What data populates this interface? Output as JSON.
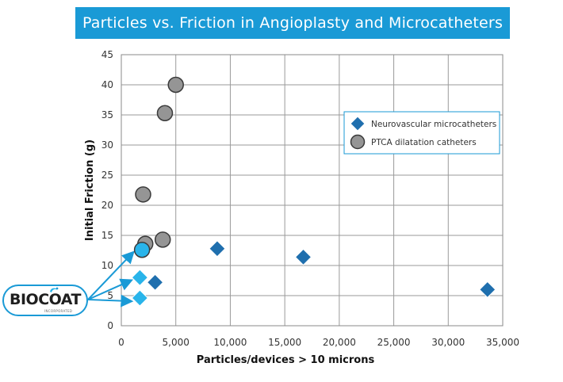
{
  "title": "Particles vs. Friction in Angioplasty and Microcatheters",
  "logo": {
    "name": "BIOCOAT",
    "subtitle": "INCORPORATED"
  },
  "colors": {
    "banner": "#1a9ad6",
    "neuro": "#1f6fae",
    "ptca": "#959595",
    "highlight": "#29b4ea",
    "callout": "#1a9ad6",
    "grid": "#9a9a9a"
  },
  "chart_data": {
    "type": "scatter",
    "xlabel": "Particles/devices > 10 microns",
    "ylabel": "Initial Friction (g)",
    "xlim": [
      0,
      35000
    ],
    "ylim": [
      0,
      45
    ],
    "x_ticks": [
      0,
      5000,
      10000,
      15000,
      20000,
      25000,
      30000,
      35000
    ],
    "x_tick_labels": [
      "0",
      "5,000",
      "10,000",
      "15,000",
      "20,000",
      "25,000",
      "30,000",
      "35,000"
    ],
    "y_ticks": [
      0,
      5,
      10,
      15,
      20,
      25,
      30,
      35,
      40,
      45
    ],
    "y_tick_labels": [
      "0",
      "5",
      "10",
      "15",
      "20",
      "25",
      "30",
      "35",
      "40",
      "45"
    ],
    "grid": true,
    "legend_position": "right",
    "series": [
      {
        "name": "Neurovascular microcatheters",
        "marker": "diamond",
        "color": "#1f6fae",
        "points": [
          {
            "x": 1700,
            "y": 4.6,
            "highlight": true
          },
          {
            "x": 1700,
            "y": 8.0,
            "highlight": true
          },
          {
            "x": 3100,
            "y": 7.2
          },
          {
            "x": 8800,
            "y": 12.8
          },
          {
            "x": 16700,
            "y": 11.4
          },
          {
            "x": 33600,
            "y": 6.0
          }
        ]
      },
      {
        "name": "PTCA dilatation catheters",
        "marker": "circle",
        "color": "#959595",
        "points": [
          {
            "x": 5000,
            "y": 40.0
          },
          {
            "x": 4000,
            "y": 35.3
          },
          {
            "x": 2000,
            "y": 21.8
          },
          {
            "x": 2200,
            "y": 13.6
          },
          {
            "x": 3800,
            "y": 14.3
          },
          {
            "x": 1900,
            "y": 12.6,
            "highlight": true
          }
        ]
      }
    ]
  }
}
